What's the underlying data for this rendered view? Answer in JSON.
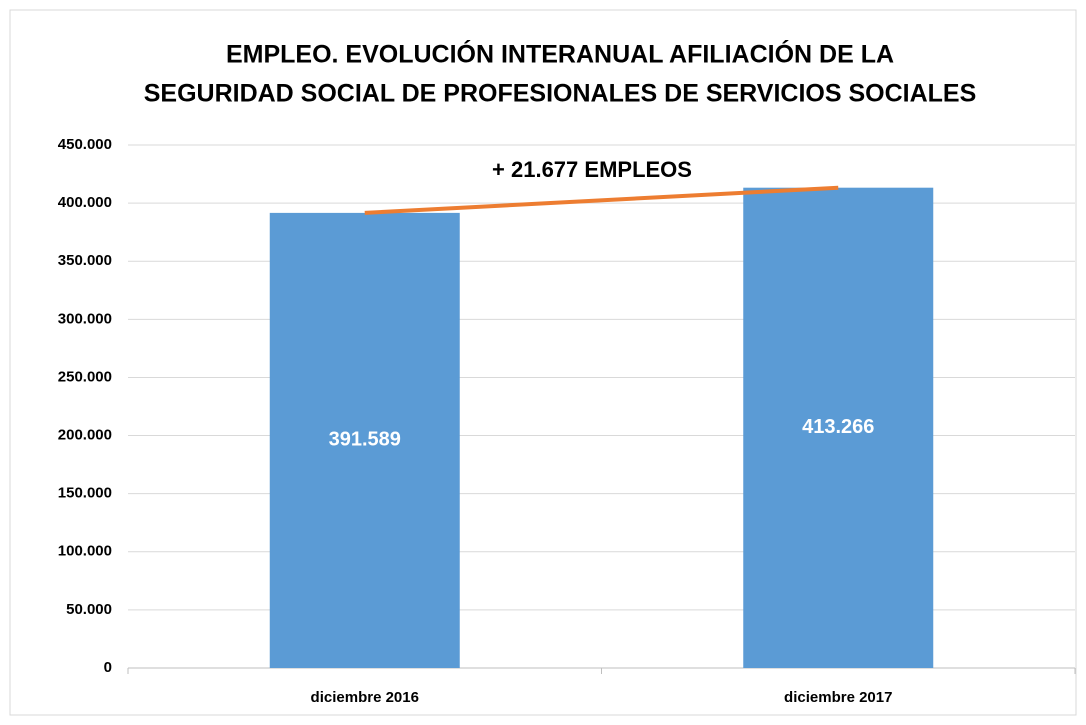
{
  "chart_data": {
    "type": "bar",
    "title": [
      "EMPLEO. EVOLUCIÓN  INTERANUAL AFILIACIÓN DE LA",
      "SEGURIDAD SOCIAL DE PROFESIONALES DE SERVICIOS SOCIALES"
    ],
    "annotation": "+ 21.677 EMPLEOS",
    "categories": [
      "diciembre 2016",
      "diciembre 2017"
    ],
    "values": [
      391589,
      413266
    ],
    "value_labels": [
      "391.589",
      "413.266"
    ],
    "color": "#5b9bd5",
    "trend_color": "#ed7d31",
    "ylim": [
      0,
      450000
    ],
    "yticks": [
      0,
      {
        "value": 50000,
        "label": "50.000"
      },
      {
        "value": 100000,
        "label": "100.000"
      },
      {
        "value": 150000,
        "label": "150.000"
      },
      {
        "value": 200000,
        "label": "200.000"
      },
      {
        "value": 250000,
        "label": "250.000"
      },
      {
        "value": 300000,
        "label": "300.000"
      },
      {
        "value": 350000,
        "label": "350.000"
      },
      {
        "value": 400000,
        "label": "400.000"
      },
      {
        "value": 450000,
        "label": "450.000"
      }
    ],
    "grid": true
  }
}
